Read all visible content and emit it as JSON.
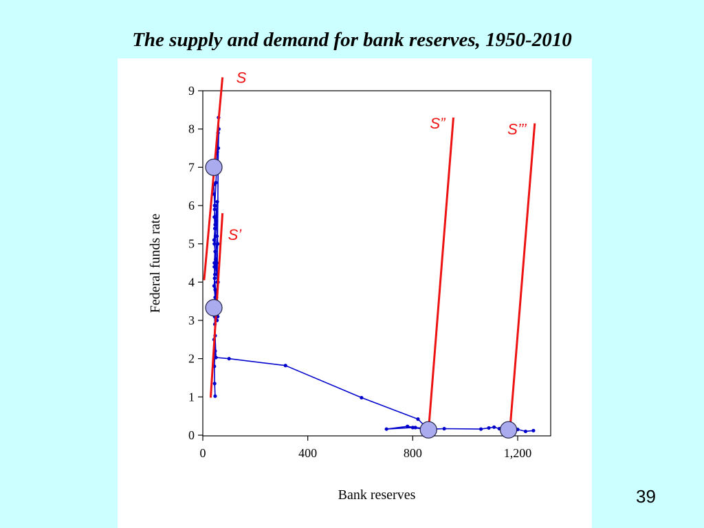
{
  "slide": {
    "title": "The supply and demand for bank reserves, 1950-2010",
    "page_number": "39"
  },
  "chart_data": {
    "type": "line",
    "xlabel": "Bank reserves",
    "ylabel": "Federal funds rate",
    "xlim": [
      0,
      1300
    ],
    "ylim": [
      0,
      9
    ],
    "x_ticks": [
      0,
      400,
      800,
      1200
    ],
    "x_tick_labels": [
      "0",
      "400",
      "800",
      "1,200"
    ],
    "y_ticks": [
      0,
      1,
      2,
      3,
      4,
      5,
      6,
      7,
      8,
      9
    ],
    "y_tick_labels": [
      "0",
      "1",
      "2",
      "3",
      "4",
      "5",
      "6",
      "7",
      "8",
      "9"
    ],
    "grid": false,
    "legend": "none",
    "series": [
      {
        "color": "#0000cc",
        "points": [
          [
            47,
            1.02
          ],
          [
            45,
            1.35
          ],
          [
            44,
            1.8
          ],
          [
            47,
            2.2
          ],
          [
            43,
            2.5
          ],
          [
            46,
            2.9
          ],
          [
            44,
            3.3
          ],
          [
            47,
            3.6
          ],
          [
            43,
            3.9
          ],
          [
            46,
            4.2
          ],
          [
            44,
            4.5
          ],
          [
            47,
            4.8
          ],
          [
            43,
            5.1
          ],
          [
            46,
            5.4
          ],
          [
            44,
            5.7
          ],
          [
            47,
            6.0
          ],
          [
            43,
            6.3
          ],
          [
            42,
            6.55
          ],
          [
            45,
            6.0
          ],
          [
            47,
            5.5
          ],
          [
            44,
            5.0
          ],
          [
            50,
            4.6
          ],
          [
            45,
            4.1
          ],
          [
            51,
            3.6
          ],
          [
            47,
            3.2
          ],
          [
            54,
            3.0
          ],
          [
            50,
            3.4
          ],
          [
            55,
            4.0
          ],
          [
            49,
            4.6
          ],
          [
            54,
            5.2
          ],
          [
            50,
            5.7
          ],
          [
            55,
            6.1
          ],
          [
            52,
            5.6
          ],
          [
            57,
            5.0
          ],
          [
            53,
            4.5
          ],
          [
            58,
            4.0
          ],
          [
            52,
            3.6
          ],
          [
            57,
            3.1
          ],
          [
            54,
            3.4
          ],
          [
            59,
            7.5
          ],
          [
            61,
            8.0
          ],
          [
            60,
            8.3
          ],
          [
            58,
            7.9
          ],
          [
            55,
            7.4
          ],
          [
            50,
            6.6
          ],
          [
            45,
            5.9
          ],
          [
            48,
            5.2
          ],
          [
            44,
            4.4
          ],
          [
            47,
            3.8
          ],
          [
            45,
            3.1
          ],
          [
            47,
            2.6
          ],
          [
            50,
            2.03
          ],
          [
            100,
            2.0
          ],
          [
            315,
            1.82
          ],
          [
            605,
            0.98
          ],
          [
            820,
            0.42
          ],
          [
            860,
            0.14
          ],
          [
            800,
            0.2
          ],
          [
            700,
            0.16
          ],
          [
            780,
            0.23
          ],
          [
            810,
            0.2
          ],
          [
            880,
            0.16
          ],
          [
            920,
            0.17
          ],
          [
            1060,
            0.16
          ],
          [
            1090,
            0.19
          ],
          [
            1110,
            0.21
          ],
          [
            1130,
            0.17
          ],
          [
            1160,
            0.14
          ],
          [
            1200,
            0.15
          ],
          [
            1230,
            0.1
          ],
          [
            1260,
            0.12
          ]
        ]
      }
    ],
    "supply_curves": [
      {
        "label": "S",
        "from": [
          5,
          4.05
        ],
        "to": [
          75,
          9.35
        ]
      },
      {
        "label": "S’",
        "from": [
          30,
          0.98
        ],
        "to": [
          75,
          5.8
        ]
      },
      {
        "label": "S”",
        "from": [
          860,
          0.1
        ],
        "to": [
          955,
          8.3
        ]
      },
      {
        "label": "S’’’",
        "from": [
          1170,
          0.1
        ],
        "to": [
          1265,
          8.15
        ]
      }
    ],
    "curve_color": "#ee1111",
    "marked_points": [
      {
        "x": 42,
        "y": 7.0
      },
      {
        "x": 42,
        "y": 3.33
      },
      {
        "x": 860,
        "y": 0.14
      },
      {
        "x": 1165,
        "y": 0.14
      }
    ],
    "marker_color": "#aaaaee"
  }
}
